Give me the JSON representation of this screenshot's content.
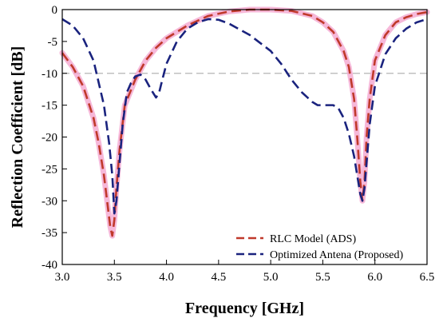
{
  "chart_data": {
    "type": "line",
    "xlabel": "Frequency [GHz]",
    "ylabel": "Reflection Coefficient [dB]",
    "xlim": [
      3.0,
      6.5
    ],
    "ylim": [
      -40,
      0
    ],
    "xticks": [
      3.0,
      3.5,
      4.0,
      4.5,
      5.0,
      5.5,
      6.0,
      6.5
    ],
    "xtick_labels": [
      "3.0",
      "3.5",
      "4.0",
      "4.5",
      "5.0",
      "5.5",
      "6.0",
      "6.5"
    ],
    "yticks": [
      0,
      -5,
      -10,
      -15,
      -20,
      -25,
      -30,
      -35,
      -40
    ],
    "ytick_labels": [
      "0",
      "-5",
      "-10",
      "-15",
      "-20",
      "-25",
      "-30",
      "-35",
      "-40"
    ],
    "grid": false,
    "reference_line": {
      "y": -10,
      "color": "#c0c0c0",
      "style": "dashed"
    },
    "legend_position": "bottom-right",
    "series": [
      {
        "name": "RLC Model (ADS)",
        "color": "#c0392b",
        "highlight_color": "#f4a6d0",
        "style": "dashed",
        "x": [
          3.0,
          3.1,
          3.2,
          3.3,
          3.35,
          3.4,
          3.43,
          3.46,
          3.48,
          3.5,
          3.52,
          3.55,
          3.6,
          3.7,
          3.8,
          3.9,
          4.0,
          4.2,
          4.4,
          4.6,
          4.8,
          5.0,
          5.2,
          5.4,
          5.5,
          5.6,
          5.7,
          5.75,
          5.8,
          5.83,
          5.86,
          5.88,
          5.9,
          5.92,
          5.95,
          6.0,
          6.1,
          6.2,
          6.3,
          6.4,
          6.5
        ],
        "y": [
          -6.8,
          -9.0,
          -12.0,
          -17.0,
          -21.0,
          -26.0,
          -30.0,
          -34.0,
          -35.5,
          -33.0,
          -28.0,
          -22.0,
          -15.0,
          -11.0,
          -8.0,
          -6.0,
          -4.5,
          -2.5,
          -1.0,
          -0.3,
          0.0,
          0.0,
          -0.2,
          -1.0,
          -2.0,
          -3.5,
          -6.5,
          -9.0,
          -14.0,
          -20.0,
          -27.0,
          -30.0,
          -27.0,
          -20.0,
          -14.0,
          -8.0,
          -4.0,
          -2.0,
          -1.2,
          -0.7,
          -0.4
        ]
      },
      {
        "name": "Optimized Antena (Proposed)",
        "color": "#1a237e",
        "style": "dashed",
        "x": [
          3.0,
          3.1,
          3.2,
          3.3,
          3.4,
          3.45,
          3.48,
          3.5,
          3.52,
          3.55,
          3.58,
          3.62,
          3.66,
          3.7,
          3.75,
          3.8,
          3.85,
          3.9,
          3.93,
          3.96,
          4.0,
          4.1,
          4.2,
          4.3,
          4.4,
          4.5,
          4.6,
          4.8,
          5.0,
          5.1,
          5.2,
          5.3,
          5.4,
          5.45,
          5.5,
          5.55,
          5.6,
          5.65,
          5.7,
          5.75,
          5.8,
          5.83,
          5.86,
          5.88,
          5.9,
          5.92,
          5.95,
          6.0,
          6.1,
          6.2,
          6.3,
          6.4,
          6.5
        ],
        "y": [
          -1.5,
          -2.5,
          -4.5,
          -8.0,
          -15.0,
          -21.0,
          -26.0,
          -32.0,
          -30.0,
          -24.0,
          -18.0,
          -13.0,
          -11.5,
          -10.5,
          -10.2,
          -11.0,
          -12.5,
          -13.8,
          -13.0,
          -11.0,
          -8.5,
          -5.0,
          -3.0,
          -2.0,
          -1.5,
          -1.6,
          -2.2,
          -4.0,
          -6.5,
          -8.5,
          -11.0,
          -13.0,
          -14.5,
          -15.0,
          -15.0,
          -15.0,
          -15.0,
          -15.5,
          -17.0,
          -19.5,
          -23.0,
          -26.0,
          -29.0,
          -30.0,
          -28.0,
          -24.0,
          -18.0,
          -12.0,
          -7.0,
          -4.5,
          -3.0,
          -2.0,
          -1.5
        ]
      }
    ]
  }
}
